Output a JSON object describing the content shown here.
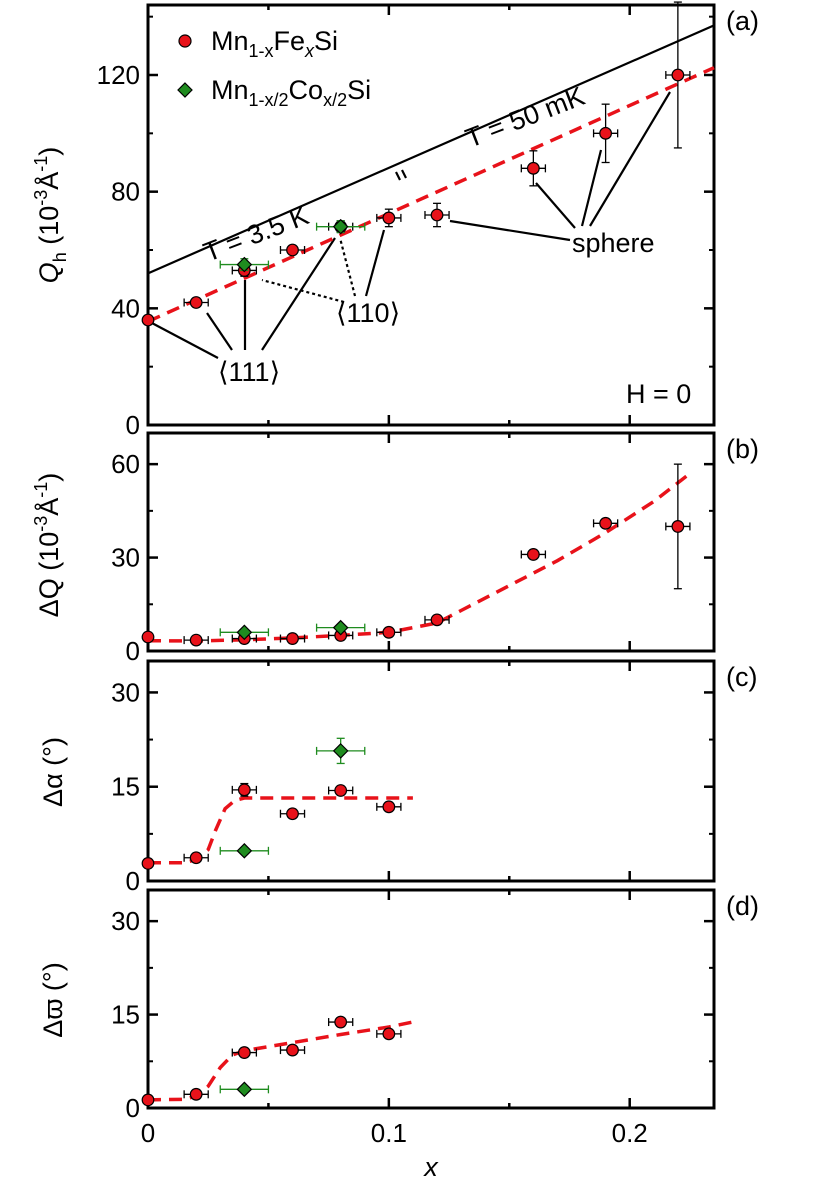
{
  "colors": {
    "fe_series": "#e8121a",
    "co_series": "#1f8c1f",
    "fit_line": "#e8121a",
    "axis": "#000000",
    "theory_line": "#000000"
  },
  "legend": {
    "fe_base": "Mn",
    "fe_sub": "1-x",
    "fe_mid": "Fe",
    "fe_sub2": "x",
    "fe_tail": "Si",
    "co_base": "Mn",
    "co_sub": "1-x/2",
    "co_mid": "Co",
    "co_sub2": "x/2",
    "co_tail": "Si"
  },
  "x_axis": {
    "label": "x",
    "ticks": [
      "0",
      "0.1",
      "0.2"
    ]
  },
  "chart_data": [
    {
      "id": "a",
      "type": "scatter",
      "panel_label": "(a)",
      "ylabel_main": "Q",
      "ylabel_sub": "h",
      "ylabel_unit": "(10",
      "ylabel_exp": "-3",
      "ylabel_unit2": "Å",
      "ylabel_exp2": "-1",
      "ylabel_close": ")",
      "xlim": [
        0,
        0.235
      ],
      "ylim": [
        0,
        144
      ],
      "yticks": [
        "0",
        "40",
        "80",
        "120"
      ],
      "annotations": {
        "t_low": "T = 3.5 K",
        "t_high": "T = 50 mK",
        "sphere": "sphere",
        "dir_111": "⟨111⟩",
        "dir_110": "⟨110⟩",
        "field": "H = 0"
      },
      "theory_line": {
        "x": [
          0,
          0.235
        ],
        "y": [
          52,
          137
        ]
      },
      "fit_line": {
        "x": [
          0,
          0.235
        ],
        "y": [
          35.5,
          122.5
        ]
      },
      "series": [
        {
          "name": "Mn1-xFexSi",
          "marker": "circle",
          "points": [
            {
              "x": 0.0,
              "y": 36,
              "xerr": 0,
              "yerr": 1
            },
            {
              "x": 0.02,
              "y": 42,
              "xerr": 0.005,
              "yerr": 1
            },
            {
              "x": 0.04,
              "y": 53,
              "xerr": 0.005,
              "yerr": 2
            },
            {
              "x": 0.06,
              "y": 60,
              "xerr": 0.005,
              "yerr": 1
            },
            {
              "x": 0.08,
              "y": 68,
              "xerr": 0.005,
              "yerr": 2
            },
            {
              "x": 0.1,
              "y": 71,
              "xerr": 0.005,
              "yerr": 3
            },
            {
              "x": 0.12,
              "y": 72,
              "xerr": 0.005,
              "yerr": 4
            },
            {
              "x": 0.16,
              "y": 88,
              "xerr": 0.005,
              "yerr": 6
            },
            {
              "x": 0.19,
              "y": 100,
              "xerr": 0.005,
              "yerr": 10
            },
            {
              "x": 0.22,
              "y": 120,
              "xerr": 0.005,
              "yerr": 25
            }
          ]
        },
        {
          "name": "Mn1-x/2Cox/2Si",
          "marker": "diamond",
          "points": [
            {
              "x": 0.04,
              "y": 55,
              "xerr": 0.01,
              "yerr": 2
            },
            {
              "x": 0.08,
              "y": 68,
              "xerr": 0.01,
              "yerr": 2
            }
          ]
        }
      ]
    },
    {
      "id": "b",
      "type": "scatter",
      "panel_label": "(b)",
      "ylabel_main": "ΔQ",
      "ylabel_unit": "(10",
      "ylabel_exp": "-3",
      "ylabel_unit2": "Å",
      "ylabel_exp2": "-1",
      "ylabel_close": ")",
      "xlim": [
        0,
        0.235
      ],
      "ylim": [
        0,
        70
      ],
      "yticks": [
        "0",
        "30",
        "60"
      ],
      "fit_line": {
        "x": [
          0,
          0.02,
          0.04,
          0.06,
          0.08,
          0.1,
          0.12,
          0.13,
          0.15,
          0.17,
          0.19,
          0.21,
          0.225
        ],
        "y": [
          3.3,
          3.2,
          3.6,
          4.2,
          5.0,
          6.0,
          9.0,
          13,
          21,
          29,
          38,
          48,
          57
        ]
      },
      "series": [
        {
          "name": "Mn1-xFexSi",
          "marker": "circle",
          "points": [
            {
              "x": 0.0,
              "y": 4.5,
              "xerr": 0,
              "yerr": 0.5
            },
            {
              "x": 0.02,
              "y": 3.5,
              "xerr": 0.005,
              "yerr": 0.5
            },
            {
              "x": 0.04,
              "y": 4,
              "xerr": 0.005,
              "yerr": 0.5
            },
            {
              "x": 0.06,
              "y": 4,
              "xerr": 0.005,
              "yerr": 0.5
            },
            {
              "x": 0.08,
              "y": 5,
              "xerr": 0.005,
              "yerr": 0.5
            },
            {
              "x": 0.1,
              "y": 6,
              "xerr": 0.005,
              "yerr": 0.5
            },
            {
              "x": 0.12,
              "y": 10,
              "xerr": 0.005,
              "yerr": 1
            },
            {
              "x": 0.16,
              "y": 31,
              "xerr": 0.005,
              "yerr": 1
            },
            {
              "x": 0.19,
              "y": 41,
              "xerr": 0.005,
              "yerr": 1
            },
            {
              "x": 0.22,
              "y": 40,
              "xerr": 0.005,
              "yerr": 20
            }
          ]
        },
        {
          "name": "Mn1-x/2Cox/2Si",
          "marker": "diamond",
          "points": [
            {
              "x": 0.04,
              "y": 6,
              "xerr": 0.01,
              "yerr": 0.5
            },
            {
              "x": 0.08,
              "y": 7.5,
              "xerr": 0.01,
              "yerr": 0.5
            }
          ]
        }
      ]
    },
    {
      "id": "c",
      "type": "scatter",
      "panel_label": "(c)",
      "ylabel_main": "Δα",
      "ylabel_unit": "(°)",
      "xlim": [
        0,
        0.235
      ],
      "ylim": [
        0,
        35
      ],
      "yticks": [
        "0",
        "15",
        "30"
      ],
      "fit_line": {
        "x": [
          0,
          0.015,
          0.02,
          0.025,
          0.028,
          0.032,
          0.036,
          0.04,
          0.06,
          0.08,
          0.1,
          0.11
        ],
        "y": [
          2.9,
          2.9,
          3.4,
          5,
          8,
          11.5,
          12.8,
          13.2,
          13.2,
          13.2,
          13.2,
          13.2
        ]
      },
      "series": [
        {
          "name": "Mn1-xFexSi",
          "marker": "circle",
          "points": [
            {
              "x": 0.0,
              "y": 2.8,
              "xerr": 0,
              "yerr": 0.3
            },
            {
              "x": 0.02,
              "y": 3.7,
              "xerr": 0.005,
              "yerr": 0.4
            },
            {
              "x": 0.04,
              "y": 14.5,
              "xerr": 0.005,
              "yerr": 1
            },
            {
              "x": 0.06,
              "y": 10.7,
              "xerr": 0.005,
              "yerr": 0.6
            },
            {
              "x": 0.08,
              "y": 14.4,
              "xerr": 0.005,
              "yerr": 0.6
            },
            {
              "x": 0.1,
              "y": 11.8,
              "xerr": 0.005,
              "yerr": 0.6
            }
          ]
        },
        {
          "name": "Mn1-x/2Cox/2Si",
          "marker": "diamond",
          "points": [
            {
              "x": 0.04,
              "y": 4.8,
              "xerr": 0.01,
              "yerr": 0.5
            },
            {
              "x": 0.08,
              "y": 20.7,
              "xerr": 0.01,
              "yerr": 2
            }
          ]
        }
      ]
    },
    {
      "id": "d",
      "type": "scatter",
      "panel_label": "(d)",
      "ylabel_main": "Δϖ",
      "ylabel_unit": "(°)",
      "xlim": [
        0,
        0.235
      ],
      "ylim": [
        0,
        35
      ],
      "yticks": [
        "0",
        "15",
        "30"
      ],
      "fit_line": {
        "x": [
          0,
          0.015,
          0.02,
          0.025,
          0.03,
          0.035,
          0.04,
          0.06,
          0.08,
          0.1,
          0.11
        ],
        "y": [
          1.3,
          1.4,
          1.9,
          3.5,
          6.5,
          8.5,
          9.2,
          10.5,
          11.8,
          13.0,
          13.8
        ]
      },
      "series": [
        {
          "name": "Mn1-xFexSi",
          "marker": "circle",
          "points": [
            {
              "x": 0.0,
              "y": 1.3,
              "xerr": 0,
              "yerr": 0.3
            },
            {
              "x": 0.02,
              "y": 2.2,
              "xerr": 0.005,
              "yerr": 0.4
            },
            {
              "x": 0.04,
              "y": 8.9,
              "xerr": 0.005,
              "yerr": 0.6
            },
            {
              "x": 0.06,
              "y": 9.3,
              "xerr": 0.005,
              "yerr": 0.6
            },
            {
              "x": 0.08,
              "y": 13.8,
              "xerr": 0.005,
              "yerr": 0.6
            },
            {
              "x": 0.1,
              "y": 11.9,
              "xerr": 0.005,
              "yerr": 0.6
            }
          ]
        },
        {
          "name": "Mn1-x/2Cox/2Si",
          "marker": "diamond",
          "points": [
            {
              "x": 0.04,
              "y": 3.0,
              "xerr": 0.01,
              "yerr": 0.4
            }
          ]
        }
      ]
    }
  ]
}
